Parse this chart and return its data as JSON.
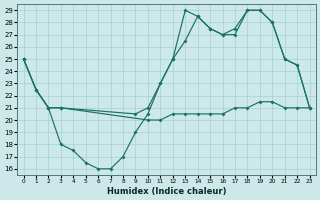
{
  "xlabel": "Humidex (Indice chaleur)",
  "xlim": [
    -0.5,
    23.5
  ],
  "ylim": [
    15.5,
    29.5
  ],
  "yticks": [
    16,
    17,
    18,
    19,
    20,
    21,
    22,
    23,
    24,
    25,
    26,
    27,
    28,
    29
  ],
  "xticks": [
    0,
    1,
    2,
    3,
    4,
    5,
    6,
    7,
    8,
    9,
    10,
    11,
    12,
    13,
    14,
    15,
    16,
    17,
    18,
    19,
    20,
    21,
    22,
    23
  ],
  "bg_color": "#cce8e8",
  "grid_color": "#a8d0d0",
  "line_color": "#1a7068",
  "line_A_x": [
    0,
    1,
    2,
    3,
    4,
    5,
    6,
    7,
    8,
    9,
    10,
    11,
    12,
    13,
    14,
    15,
    16,
    17,
    18,
    19,
    20,
    21,
    22,
    23
  ],
  "line_A_y": [
    25,
    22.5,
    21,
    18,
    17.5,
    16.5,
    16,
    16,
    17,
    19,
    20.5,
    23,
    25,
    29,
    28.5,
    27.5,
    27,
    27,
    29,
    29,
    28,
    25,
    24.5,
    21
  ],
  "line_B_x": [
    0,
    1,
    2,
    3,
    10,
    11,
    12,
    13,
    14,
    15,
    16,
    17,
    18,
    19,
    20,
    21,
    22,
    23
  ],
  "line_B_y": [
    25,
    22.5,
    21,
    21,
    20,
    20,
    20.5,
    20.5,
    20.5,
    20.5,
    20.5,
    21,
    21,
    21.5,
    21.5,
    21,
    21,
    21
  ],
  "line_C_x": [
    0,
    1,
    2,
    3,
    9,
    10,
    11,
    12,
    13,
    14,
    15,
    16,
    17,
    18,
    19,
    20,
    21,
    22,
    23
  ],
  "line_C_y": [
    25,
    22.5,
    21,
    21,
    20.5,
    21,
    23,
    25,
    26.5,
    28.5,
    27.5,
    27,
    27.5,
    29,
    29,
    28,
    25,
    24.5,
    21
  ]
}
